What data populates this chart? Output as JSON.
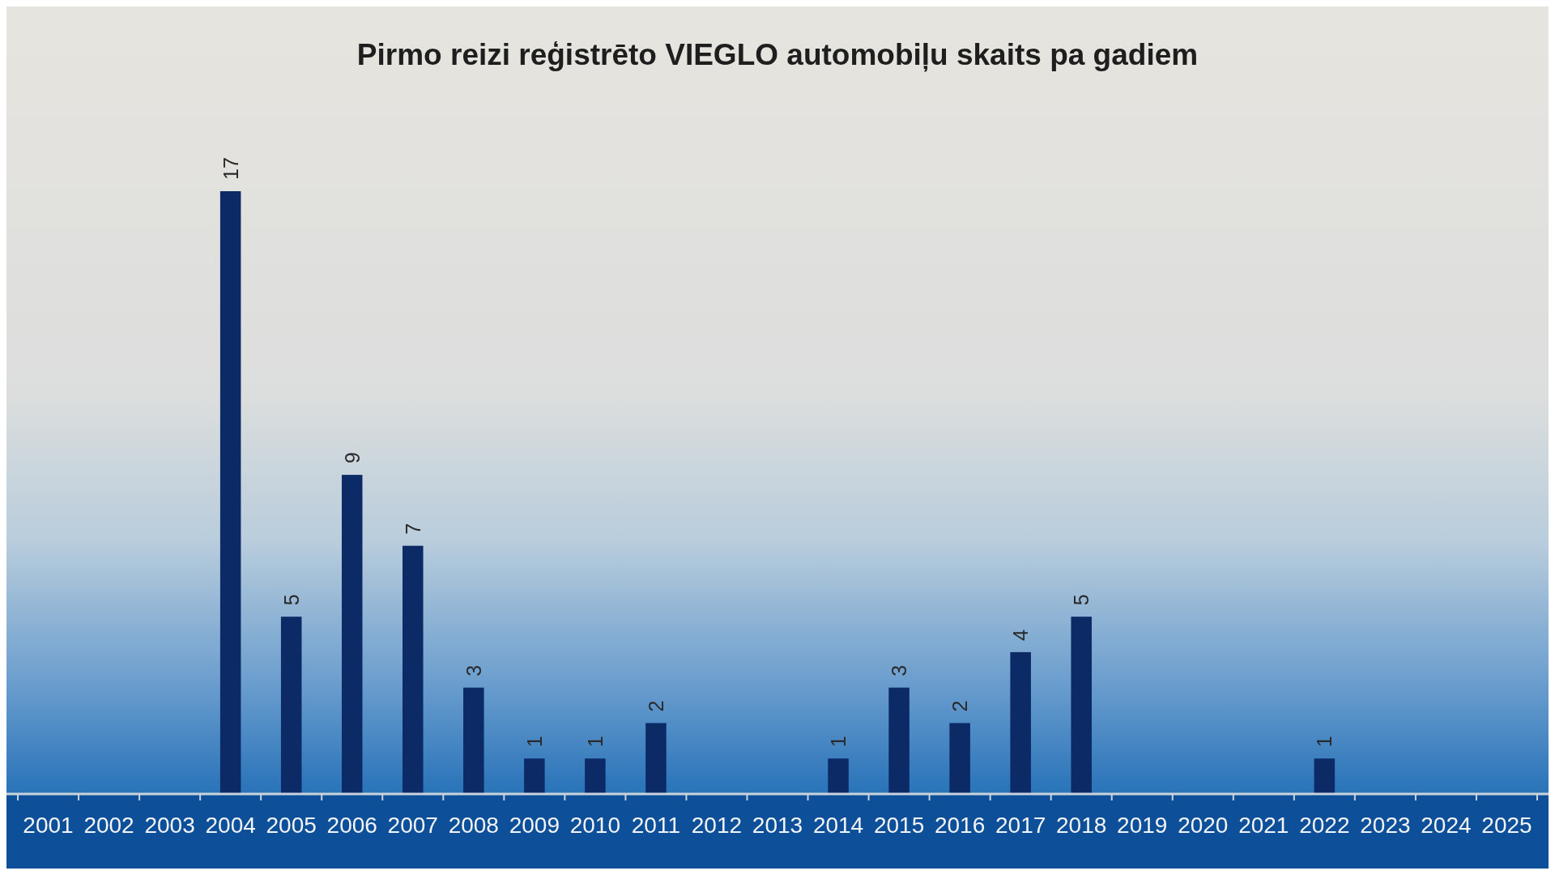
{
  "chart_data": {
    "type": "bar",
    "title": "Pirmo reizi reģistrēto VIEGLO automobiļu skaits pa gadiem",
    "categories": [
      "2001",
      "2002",
      "2003",
      "2004",
      "2005",
      "2006",
      "2007",
      "2008",
      "2009",
      "2010",
      "2011",
      "2012",
      "2013",
      "2014",
      "2015",
      "2016",
      "2017",
      "2018",
      "2019",
      "2020",
      "2021",
      "2022",
      "2023",
      "2024",
      "2025"
    ],
    "values": [
      null,
      null,
      null,
      17,
      5,
      9,
      7,
      3,
      1,
      1,
      2,
      null,
      null,
      1,
      3,
      2,
      4,
      5,
      null,
      null,
      null,
      1,
      null,
      null,
      null
    ],
    "color": "#0b2a66",
    "data_labels": true
  }
}
